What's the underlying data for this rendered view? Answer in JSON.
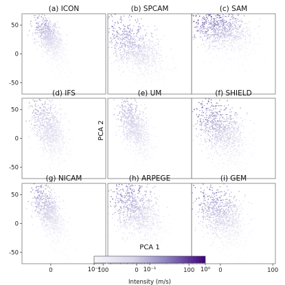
{
  "chart_data": {
    "type": "scatter",
    "xlabel": "PCA 1",
    "ylabel": "PCA 2",
    "xlim": [
      -55,
      105
    ],
    "ylim": [
      -70,
      70
    ],
    "xticks": [
      0,
      100
    ],
    "yticks": [
      50,
      0,
      -50
    ],
    "grid": false,
    "colorbar": {
      "label": "Intensity (m/s)",
      "scale": "log",
      "range": [
        0.01,
        1
      ],
      "ticks": [
        "10⁻²",
        "10⁻¹",
        "10⁰"
      ],
      "color_low": "#f7f6fb",
      "color_high": "#3f007d"
    },
    "panels": [
      {
        "label": "(a) ICON",
        "cx": -2,
        "cy": 28,
        "sx": 13,
        "sy": 18,
        "rho": -0.55,
        "tail": 0.2,
        "intensity": 0.45
      },
      {
        "label": "(b) SPCAM",
        "cx": 0,
        "cy": 8,
        "sx": 28,
        "sy": 24,
        "rho": -0.5,
        "tail": 0.15,
        "intensity": 0.55
      },
      {
        "label": "(c) SAM",
        "cx": 5,
        "cy": 40,
        "sx": 28,
        "sy": 20,
        "rho": -0.35,
        "tail": 0.2,
        "intensity": 0.75
      },
      {
        "label": "(d) IFS",
        "cx": -3,
        "cy": 15,
        "sx": 16,
        "sy": 26,
        "rho": -0.5,
        "tail": 0.15,
        "intensity": 0.4
      },
      {
        "label": "(e) UM",
        "cx": -3,
        "cy": 18,
        "sx": 15,
        "sy": 24,
        "rho": -0.5,
        "tail": 0.15,
        "intensity": 0.4
      },
      {
        "label": "(f) SHIELD",
        "cx": 5,
        "cy": 10,
        "sx": 24,
        "sy": 27,
        "rho": -0.45,
        "tail": 0.15,
        "intensity": 0.6
      },
      {
        "label": "(g) NICAM",
        "cx": -3,
        "cy": 20,
        "sx": 14,
        "sy": 22,
        "rho": -0.55,
        "tail": 0.2,
        "intensity": 0.45
      },
      {
        "label": "(h) ARPEGE",
        "cx": 2,
        "cy": 20,
        "sx": 24,
        "sy": 26,
        "rho": -0.4,
        "tail": 0.15,
        "intensity": 0.6
      },
      {
        "label": "(i) GEM",
        "cx": 5,
        "cy": 12,
        "sx": 22,
        "sy": 24,
        "rho": -0.35,
        "tail": 0.15,
        "intensity": 0.55
      }
    ]
  }
}
